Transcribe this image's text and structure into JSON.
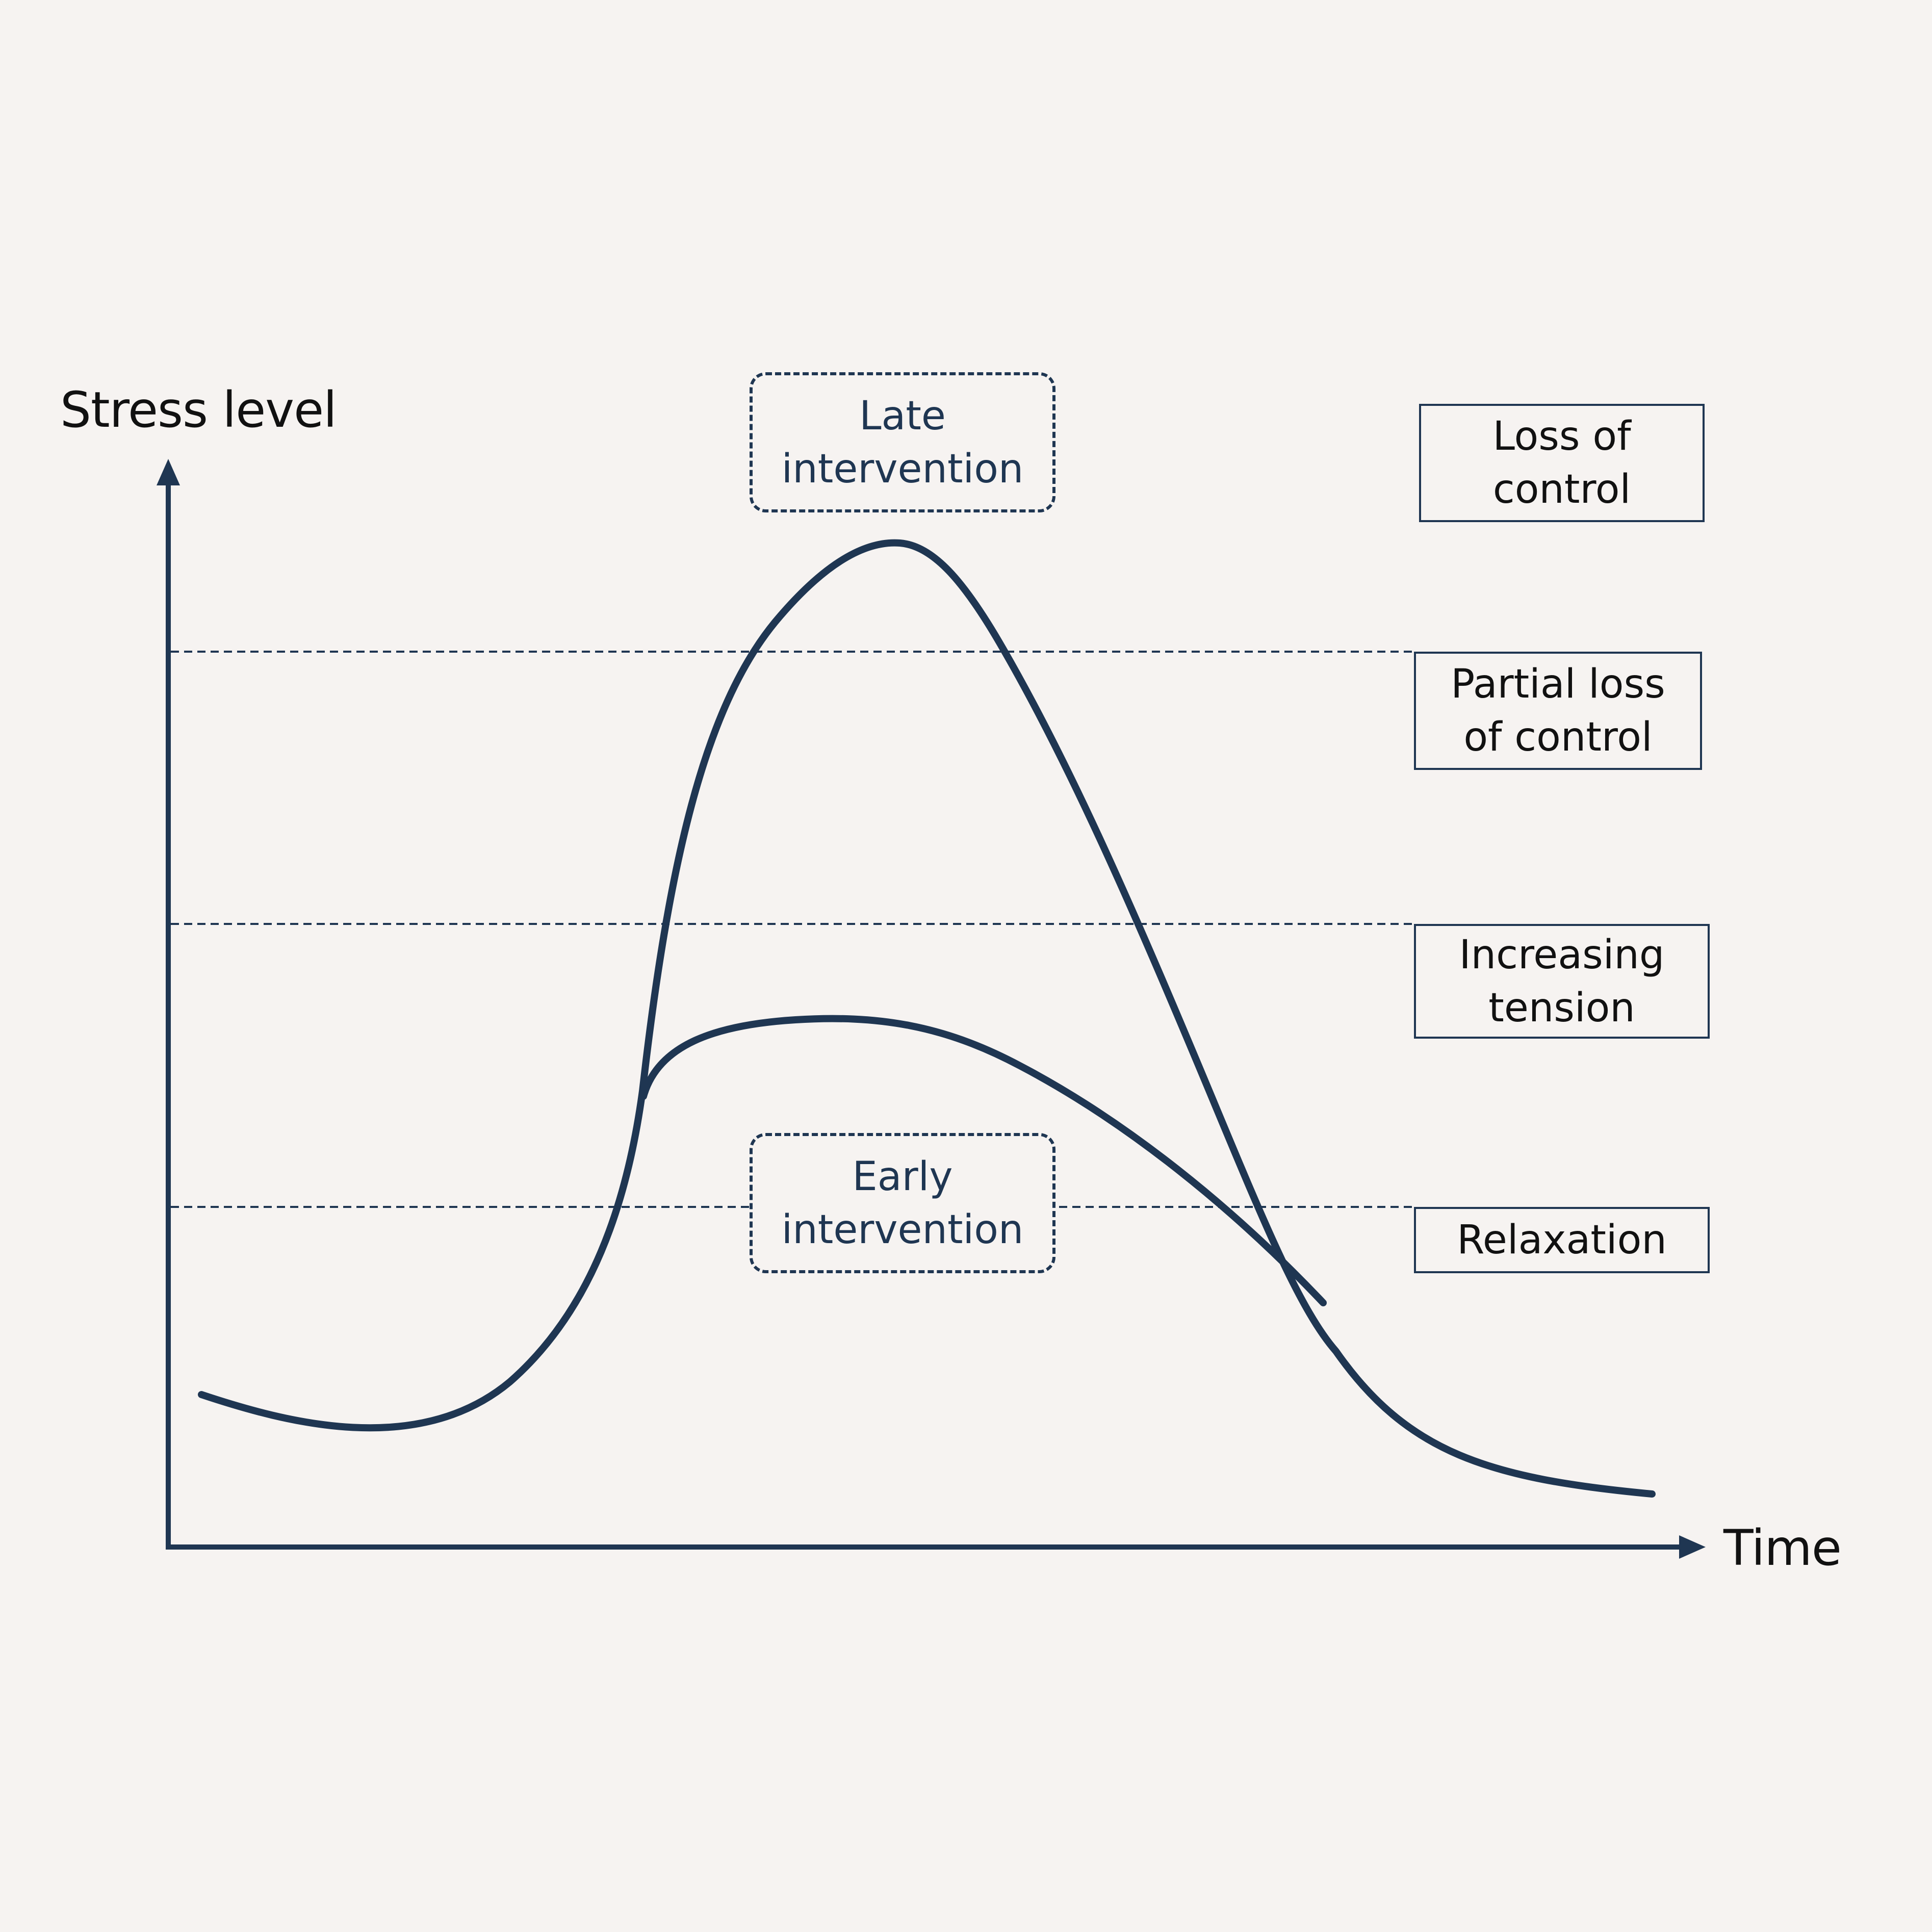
{
  "axes": {
    "y_label": "Stress level",
    "x_label": "Time"
  },
  "stage_labels": {
    "loss_of_control": "Loss of\ncontrol",
    "partial_loss_of_control": "Partial loss\nof control",
    "increasing_tension": "Increasing\ntension",
    "relaxation": "Relaxation"
  },
  "interventions": {
    "late": "Late\nintervention",
    "early": "Early\nintervention"
  },
  "colors": {
    "background": "#f6f3f1",
    "ink": "#1f3652",
    "text": "#111111"
  }
}
